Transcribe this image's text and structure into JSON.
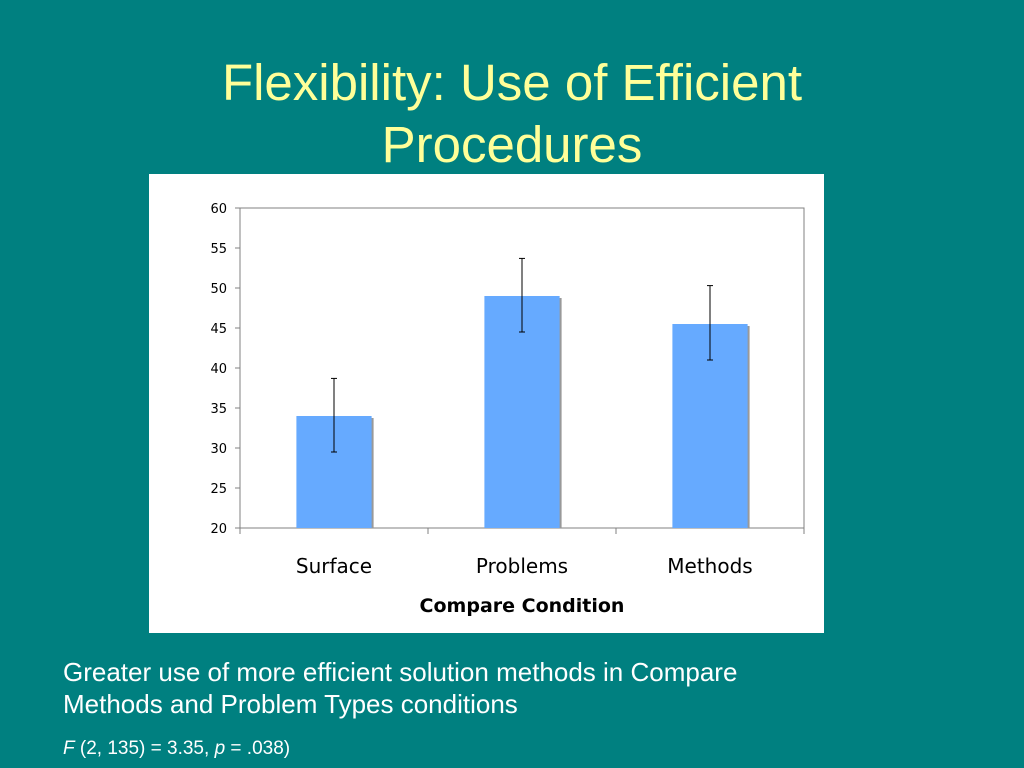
{
  "slide": {
    "title_line1": "Flexibility: Use of Efficient",
    "title_line2": "Procedures",
    "caption_line1": "Greater use of more efficient solution methods in Compare",
    "caption_line2": "Methods and Problem Types conditions",
    "stats": {
      "f_symbol": "F",
      "f_text": " (2, 135) = 3.35, ",
      "p_symbol": "p",
      "p_text": " = .038)"
    },
    "colors": {
      "background": "#008080",
      "title": "#FFFF99",
      "caption": "#FFFFFF"
    }
  },
  "chart_data": {
    "type": "bar",
    "categories": [
      "Surface",
      "Problems",
      "Methods"
    ],
    "values": [
      34,
      49,
      45.5
    ],
    "error_low": [
      29.5,
      44.5,
      41
    ],
    "error_high": [
      38.7,
      53.7,
      50.3
    ],
    "xlabel": "Compare Condition",
    "ylabel": "",
    "ylim": [
      20,
      60
    ],
    "yticks": [
      20,
      25,
      30,
      35,
      40,
      45,
      50,
      55,
      60
    ],
    "grid": false,
    "legend": "none",
    "bar_color": "#66AAFF",
    "bar_shadow_color": "#999999"
  }
}
